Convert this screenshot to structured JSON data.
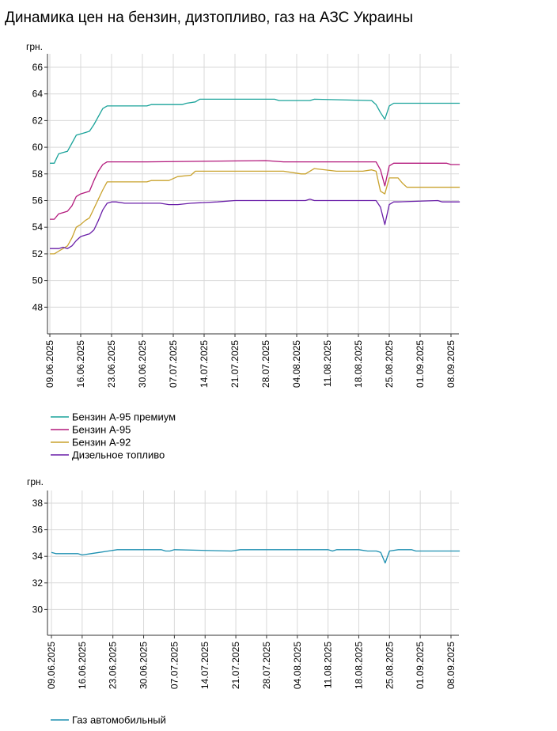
{
  "page": {
    "title": "Динамика цен на бензин, дизтопливо, газ на АЗС Украины"
  },
  "chart_data": [
    {
      "type": "line",
      "title": "",
      "ylabel": "грн.",
      "ylim": [
        46,
        66
      ],
      "yticks": [
        48,
        50,
        52,
        54,
        56,
        58,
        60,
        62,
        64,
        66
      ],
      "x_range": [
        "2025-06-09",
        "2025-09-10"
      ],
      "xticks": [
        "09.06.2025",
        "16.06.2025",
        "23.06.2025",
        "30.06.2025",
        "07.07.2025",
        "14.07.2025",
        "21.07.2025",
        "28.07.2025",
        "04.08.2025",
        "11.08.2025",
        "18.08.2025",
        "25.08.2025",
        "01.09.2025",
        "08.09.2025"
      ],
      "grid": true,
      "legend": "bottom-left",
      "series": [
        {
          "name": "Бензин А-95 премиум",
          "color": "#1aa39a",
          "x": [
            "2025-06-09",
            "2025-06-10",
            "2025-06-11",
            "2025-06-12",
            "2025-06-13",
            "2025-06-14",
            "2025-06-15",
            "2025-06-16",
            "2025-06-17",
            "2025-06-18",
            "2025-06-19",
            "2025-06-20",
            "2025-06-21",
            "2025-06-22",
            "2025-06-23",
            "2025-06-24",
            "2025-07-01",
            "2025-07-02",
            "2025-07-09",
            "2025-07-10",
            "2025-07-12",
            "2025-07-13",
            "2025-07-30",
            "2025-07-31",
            "2025-08-07",
            "2025-08-08",
            "2025-08-21",
            "2025-08-22",
            "2025-08-23",
            "2025-08-24",
            "2025-08-25",
            "2025-08-26",
            "2025-08-27",
            "2025-09-10"
          ],
          "values": [
            58.8,
            58.8,
            59.5,
            59.6,
            59.7,
            60.3,
            60.9,
            61.0,
            61.1,
            61.2,
            61.7,
            62.3,
            62.9,
            63.1,
            63.1,
            63.1,
            63.1,
            63.2,
            63.2,
            63.3,
            63.4,
            63.6,
            63.6,
            63.5,
            63.5,
            63.6,
            63.5,
            63.2,
            62.6,
            62.1,
            63.1,
            63.3,
            63.3,
            63.3
          ]
        },
        {
          "name": "Бензин А-95",
          "color": "#b3197c",
          "x": [
            "2025-06-09",
            "2025-06-10",
            "2025-06-11",
            "2025-06-12",
            "2025-06-13",
            "2025-06-14",
            "2025-06-15",
            "2025-06-16",
            "2025-06-17",
            "2025-06-18",
            "2025-06-19",
            "2025-06-20",
            "2025-06-21",
            "2025-06-22",
            "2025-06-23",
            "2025-06-24",
            "2025-07-01",
            "2025-07-28",
            "2025-08-01",
            "2025-08-22",
            "2025-08-23",
            "2025-08-24",
            "2025-08-25",
            "2025-08-26",
            "2025-08-27",
            "2025-09-07",
            "2025-09-08",
            "2025-09-10"
          ],
          "values": [
            54.6,
            54.6,
            55.0,
            55.1,
            55.2,
            55.6,
            56.3,
            56.5,
            56.6,
            56.7,
            57.5,
            58.2,
            58.7,
            58.9,
            58.9,
            58.9,
            58.9,
            59.0,
            58.9,
            58.9,
            58.3,
            57.1,
            58.6,
            58.8,
            58.8,
            58.8,
            58.7,
            58.7
          ]
        },
        {
          "name": "Бензин А-92",
          "color": "#c9a22d",
          "x": [
            "2025-06-09",
            "2025-06-10",
            "2025-06-11",
            "2025-06-12",
            "2025-06-13",
            "2025-06-14",
            "2025-06-15",
            "2025-06-16",
            "2025-06-17",
            "2025-06-18",
            "2025-06-19",
            "2025-06-20",
            "2025-06-21",
            "2025-06-22",
            "2025-06-23",
            "2025-06-24",
            "2025-07-01",
            "2025-07-02",
            "2025-07-06",
            "2025-07-08",
            "2025-07-11",
            "2025-07-12",
            "2025-08-01",
            "2025-08-05",
            "2025-08-06",
            "2025-08-08",
            "2025-08-13",
            "2025-08-19",
            "2025-08-21",
            "2025-08-22",
            "2025-08-23",
            "2025-08-24",
            "2025-08-25",
            "2025-08-27",
            "2025-08-28",
            "2025-08-29",
            "2025-09-10"
          ],
          "values": [
            52.0,
            52.0,
            52.2,
            52.4,
            52.6,
            53.2,
            54.0,
            54.2,
            54.5,
            54.7,
            55.4,
            56.1,
            56.8,
            57.4,
            57.4,
            57.4,
            57.4,
            57.5,
            57.5,
            57.8,
            57.9,
            58.2,
            58.2,
            58.0,
            58.0,
            58.4,
            58.2,
            58.2,
            58.3,
            58.2,
            56.7,
            56.5,
            57.7,
            57.7,
            57.3,
            57.0,
            57.0
          ]
        },
        {
          "name": "Дизельное топливо",
          "color": "#6a1fa8",
          "x": [
            "2025-06-09",
            "2025-06-10",
            "2025-06-11",
            "2025-06-12",
            "2025-06-13",
            "2025-06-14",
            "2025-06-15",
            "2025-06-16",
            "2025-06-17",
            "2025-06-18",
            "2025-06-19",
            "2025-06-20",
            "2025-06-21",
            "2025-06-22",
            "2025-06-23",
            "2025-06-24",
            "2025-06-26",
            "2025-07-04",
            "2025-07-06",
            "2025-07-08",
            "2025-07-11",
            "2025-07-17",
            "2025-07-21",
            "2025-07-23",
            "2025-08-06",
            "2025-08-07",
            "2025-08-08",
            "2025-08-22",
            "2025-08-23",
            "2025-08-24",
            "2025-08-25",
            "2025-08-26",
            "2025-08-27",
            "2025-09-05",
            "2025-09-06",
            "2025-09-07",
            "2025-09-08",
            "2025-09-10"
          ],
          "values": [
            52.4,
            52.4,
            52.4,
            52.5,
            52.4,
            52.6,
            53.0,
            53.3,
            53.4,
            53.5,
            53.8,
            54.5,
            55.3,
            55.8,
            55.9,
            55.9,
            55.8,
            55.8,
            55.7,
            55.7,
            55.8,
            55.9,
            56.0,
            56.0,
            56.0,
            56.1,
            56.0,
            56.0,
            55.5,
            54.2,
            55.7,
            55.9,
            55.9,
            56.0,
            55.9,
            55.9,
            55.9,
            55.9
          ]
        }
      ]
    },
    {
      "type": "line",
      "title": "",
      "ylabel": "грн.",
      "ylim": [
        28,
        39
      ],
      "yticks": [
        30,
        32,
        34,
        36,
        38
      ],
      "x_range": [
        "2025-06-09",
        "2025-09-10"
      ],
      "xticks": [
        "09.06.2025",
        "16.06.2025",
        "23.06.2025",
        "30.06.2025",
        "07.07.2025",
        "14.07.2025",
        "21.07.2025",
        "28.07.2025",
        "04.08.2025",
        "11.08.2025",
        "18.08.2025",
        "25.08.2025",
        "01.09.2025",
        "08.09.2025"
      ],
      "grid": true,
      "legend": "bottom-left",
      "series": [
        {
          "name": "Газ автомобильный",
          "color": "#1b8fb0",
          "x": [
            "2025-06-09",
            "2025-06-10",
            "2025-06-15",
            "2025-06-16",
            "2025-06-18",
            "2025-06-20",
            "2025-06-22",
            "2025-06-24",
            "2025-07-04",
            "2025-07-05",
            "2025-07-06",
            "2025-07-07",
            "2025-07-20",
            "2025-07-22",
            "2025-08-11",
            "2025-08-12",
            "2025-08-13",
            "2025-08-18",
            "2025-08-20",
            "2025-08-22",
            "2025-08-23",
            "2025-08-24",
            "2025-08-25",
            "2025-08-27",
            "2025-08-30",
            "2025-08-31",
            "2025-09-10"
          ],
          "values": [
            34.3,
            34.2,
            34.2,
            34.1,
            34.2,
            34.3,
            34.4,
            34.5,
            34.5,
            34.4,
            34.4,
            34.5,
            34.4,
            34.5,
            34.5,
            34.4,
            34.5,
            34.5,
            34.4,
            34.4,
            34.3,
            33.5,
            34.4,
            34.5,
            34.5,
            34.4,
            34.4
          ]
        }
      ]
    }
  ]
}
